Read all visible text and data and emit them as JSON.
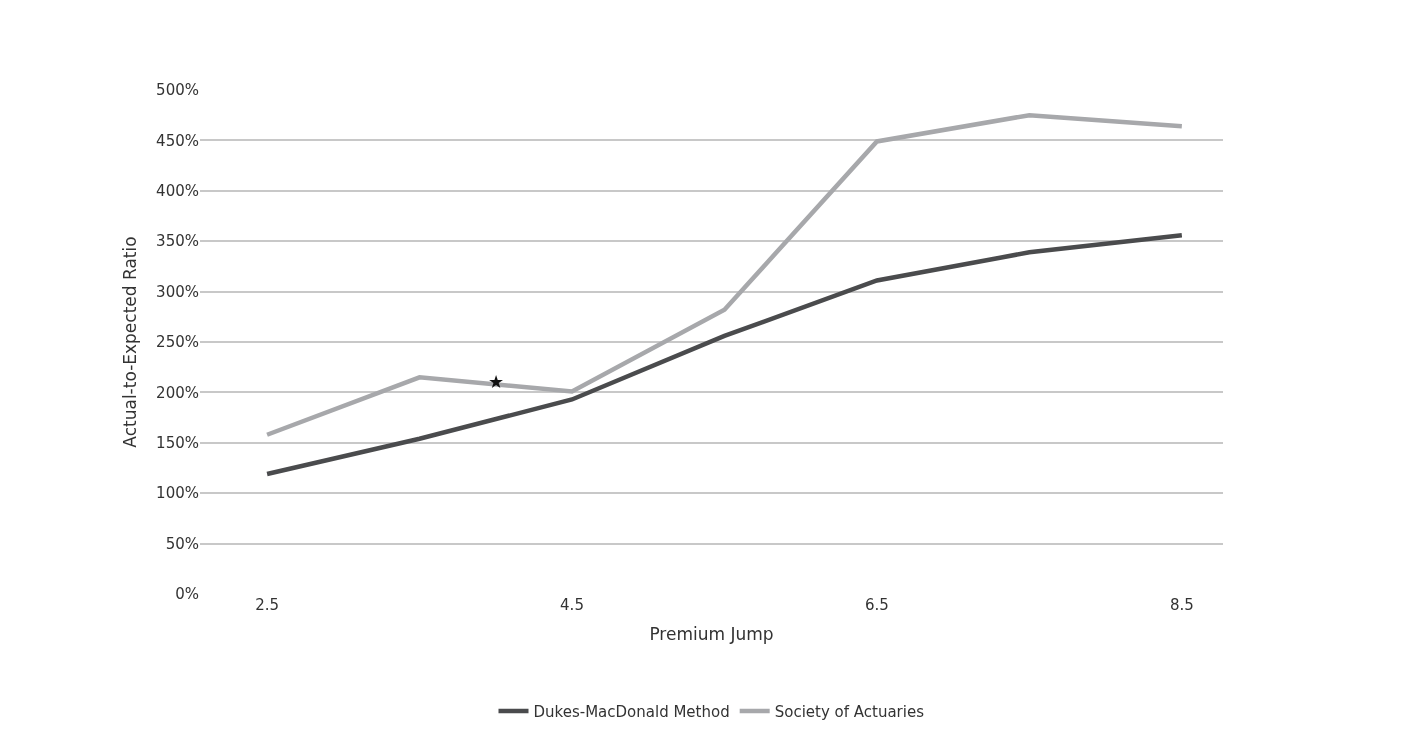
{
  "chart_data": {
    "type": "line",
    "xlabel": "Premium Jump",
    "ylabel": "Actual-to-Expected Ratio",
    "x": [
      2.5,
      3.5,
      4.5,
      5.5,
      6.5,
      7.5,
      8.5
    ],
    "series": [
      {
        "name": "Dukes-MacDonald Method",
        "color": "#4a4b4d",
        "values": [
          119,
          154,
          193,
          256,
          311,
          339,
          356
        ]
      },
      {
        "name": "Society of Actuaries",
        "color": "#a7a8ab",
        "values": [
          158,
          215,
          201,
          282,
          449,
          475,
          464
        ]
      }
    ],
    "xlim": [
      2.06,
      8.77
    ],
    "xticks": [
      2.5,
      4.5,
      6.5,
      8.5
    ],
    "ylim": [
      0,
      500
    ],
    "yticks": [
      {
        "value": 0,
        "label": "0%"
      },
      {
        "value": 50,
        "label": "50%"
      },
      {
        "value": 100,
        "label": "100%"
      },
      {
        "value": 150,
        "label": "150%"
      },
      {
        "value": 200,
        "label": "200%"
      },
      {
        "value": 250,
        "label": "250%"
      },
      {
        "value": 300,
        "label": "300%"
      },
      {
        "value": 350,
        "label": "350%"
      },
      {
        "value": 400,
        "label": "400%"
      },
      {
        "value": 450,
        "label": "450%"
      },
      {
        "value": 500,
        "label": "500%"
      }
    ],
    "annotations": [
      {
        "text": "★",
        "x": 4.0,
        "y": 211
      }
    ],
    "grid": "y",
    "legend": "bottom",
    "marker": "none",
    "line_style": "solid"
  }
}
